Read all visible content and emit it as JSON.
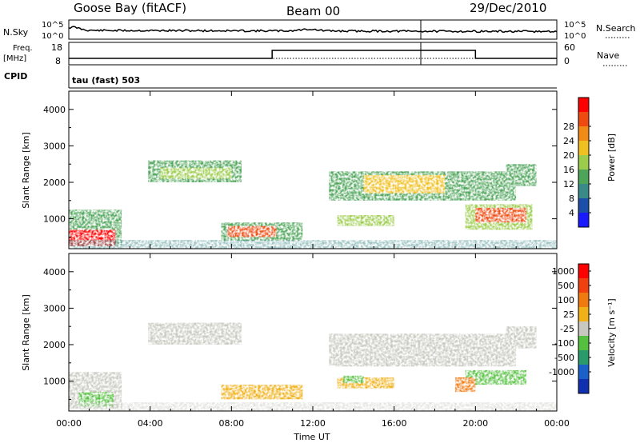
{
  "header": {
    "station": "Goose Bay (fitACF)",
    "beam": "Beam 00",
    "date": "29/Dec/2010"
  },
  "noise_panel": {
    "left_label": "N.Sky",
    "left_ticks": [
      "10^5",
      "10^0"
    ],
    "right_label": "N.Search",
    "right_ticks": [
      "10^5",
      "10^0"
    ]
  },
  "freq_panel": {
    "left_label_1": "Freq.",
    "left_label_2": "[MHz]",
    "left_ticks": [
      "18",
      "8"
    ],
    "right_label": "Nave",
    "right_ticks": [
      "60",
      "0"
    ],
    "cpid_label": "CPID",
    "cpid_value": "tau (fast) 503"
  },
  "chart_data": [
    {
      "type": "heatmap",
      "panel": "power",
      "title": "",
      "ylabel": "Slant Range [km]",
      "xlabel": "",
      "y_ticks": [
        "1000",
        "2000",
        "3000",
        "4000"
      ],
      "ylim": [
        180,
        4500
      ],
      "xlim": [
        0,
        24
      ],
      "colorbar_label": "Power [dB]",
      "colorbar_ticks": [
        "4",
        "8",
        "12",
        "16",
        "20",
        "24",
        "28"
      ],
      "colorbar_colors": [
        "#1a1aff",
        "#1c4fa8",
        "#3b8a8a",
        "#4ea55a",
        "#9ccc4c",
        "#f0c020",
        "#f28a18",
        "#ef4a10",
        "#ff0000"
      ],
      "regions": [
        {
          "t0": 3.9,
          "t1": 8.5,
          "r0": 2000,
          "r1": 2600,
          "level": 3
        },
        {
          "t0": 4.5,
          "t1": 8.0,
          "r0": 2100,
          "r1": 2400,
          "level": 4
        },
        {
          "t0": 0.0,
          "t1": 2.6,
          "r0": 250,
          "r1": 1250,
          "level": 3
        },
        {
          "t0": 0.0,
          "t1": 2.3,
          "r0": 250,
          "r1": 700,
          "level": 8
        },
        {
          "t0": 7.5,
          "t1": 11.5,
          "r0": 400,
          "r1": 900,
          "level": 3
        },
        {
          "t0": 7.8,
          "t1": 10.2,
          "r0": 500,
          "r1": 800,
          "level": 7
        },
        {
          "t0": 12.8,
          "t1": 22.0,
          "r0": 1500,
          "r1": 2300,
          "level": 3
        },
        {
          "t0": 14.5,
          "t1": 18.5,
          "r0": 1700,
          "r1": 2200,
          "level": 5
        },
        {
          "t0": 13.2,
          "t1": 16.0,
          "r0": 800,
          "r1": 1100,
          "level": 4
        },
        {
          "t0": 19.5,
          "t1": 22.8,
          "r0": 700,
          "r1": 1400,
          "level": 4
        },
        {
          "t0": 20.0,
          "t1": 22.5,
          "r0": 900,
          "r1": 1300,
          "level": 7
        },
        {
          "t0": 21.5,
          "t1": 23.0,
          "r0": 1900,
          "r1": 2500,
          "level": 3
        }
      ]
    },
    {
      "type": "heatmap",
      "panel": "velocity",
      "title": "",
      "ylabel": "Slant Range [km]",
      "xlabel": "Time UT",
      "x_ticks": [
        "00:00",
        "04:00",
        "08:00",
        "12:00",
        "16:00",
        "20:00",
        "00:00"
      ],
      "y_ticks": [
        "1000",
        "2000",
        "3000",
        "4000"
      ],
      "ylim": [
        180,
        4500
      ],
      "xlim": [
        0,
        24
      ],
      "colorbar_label": "Velocity [m s⁻¹]",
      "colorbar_ticks": [
        "1000",
        "500",
        "100",
        "25",
        "-25",
        "-100",
        "-500",
        "-1000"
      ],
      "colorbar_colors": [
        "#1030b0",
        "#1a60c8",
        "#2a9a6a",
        "#55c040",
        "#c8c8c0",
        "#f0b018",
        "#f07a10",
        "#f04010",
        "#ff0000"
      ],
      "regions": [
        {
          "t0": 3.9,
          "t1": 8.5,
          "r0": 2000,
          "r1": 2600,
          "level": 4
        },
        {
          "t0": 0.0,
          "t1": 2.6,
          "r0": 250,
          "r1": 1250,
          "level": 4
        },
        {
          "t0": 0.5,
          "t1": 2.2,
          "r0": 300,
          "r1": 700,
          "level": 3
        },
        {
          "t0": 7.5,
          "t1": 11.5,
          "r0": 500,
          "r1": 900,
          "level": 5
        },
        {
          "t0": 12.8,
          "t1": 22.0,
          "r0": 1400,
          "r1": 2300,
          "level": 4
        },
        {
          "t0": 13.2,
          "t1": 16.0,
          "r0": 800,
          "r1": 1100,
          "level": 5
        },
        {
          "t0": 13.5,
          "t1": 14.5,
          "r0": 950,
          "r1": 1150,
          "level": 3
        },
        {
          "t0": 19.5,
          "t1": 22.5,
          "r0": 900,
          "r1": 1300,
          "level": 3
        },
        {
          "t0": 19.0,
          "t1": 20.0,
          "r0": 700,
          "r1": 1100,
          "level": 6
        },
        {
          "t0": 21.5,
          "t1": 23.0,
          "r0": 1900,
          "r1": 2500,
          "level": 4
        }
      ]
    }
  ]
}
